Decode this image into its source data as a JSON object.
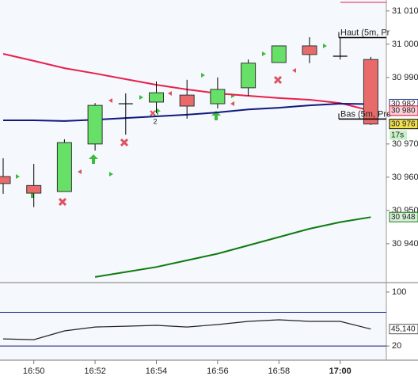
{
  "chart_data": [
    {
      "type": "candlestick",
      "categories": [
        null,
        "16:50",
        null,
        "16:52",
        null,
        "16:54",
        null,
        "16:56",
        null,
        "16:58",
        null,
        "17:00",
        null
      ],
      "open": [
        30960.2,
        30957.5,
        30955.7,
        30970,
        30982.1,
        30982.6,
        30984.7,
        30982.1,
        30986.9,
        30994.5,
        30999.5,
        30996.4,
        30995.4
      ],
      "high": [
        30965.7,
        30964,
        30971.4,
        30982.3,
        30985.2,
        30988.8,
        30989.3,
        30990,
        30995.4,
        30999.5,
        31002.1,
        31002.1,
        30996.2
      ],
      "low": [
        30955,
        30951,
        30955.7,
        30968,
        30972.8,
        30979.3,
        30977.6,
        30980.7,
        30984.5,
        30994.5,
        30994.3,
        30995.4,
        30975.7
      ],
      "close": [
        30958.1,
        30955.2,
        30970.4,
        30981.6,
        30982.1,
        30985.4,
        30981.4,
        30986.4,
        30994.3,
        30999.5,
        30996.9,
        30996.4,
        30976
      ],
      "up_color": "#66e066",
      "down_color": "#e86a6a",
      "lines": [
        {
          "color": "#e8204a",
          "values": [
            30997.1,
            30995,
            30992.8,
            30991.2,
            30989.5,
            30987.8,
            30986.4,
            30985.2,
            30984.5,
            30983.8,
            30983.3,
            30982.3,
            30980
          ]
        },
        {
          "color": "#101880",
          "values": [
            30977.1,
            30977.1,
            30976.9,
            30977.3,
            30977.8,
            30978.3,
            30978.8,
            30979.5,
            30980.4,
            30980.9,
            30981.6,
            30982.1,
            30982
          ]
        },
        {
          "color": "#0f7a0f",
          "values": [
            null,
            null,
            null,
            30930,
            30931.5,
            30933,
            30935,
            30937,
            30939.5,
            30942,
            30944.5,
            30946.5,
            30948
          ]
        }
      ],
      "ylim": [
        30928.3,
        31013.3
      ],
      "yticks": [
        {
          "value": 31010,
          "label": "31 010"
        },
        {
          "value": 31000,
          "label": "31 000"
        },
        {
          "value": 30990,
          "label": "30 990"
        },
        {
          "value": 30970,
          "label": "30 970"
        },
        {
          "value": 30960,
          "label": "30 960"
        },
        {
          "value": 30950,
          "label": "30 950"
        },
        {
          "value": 30940,
          "label": "30 940"
        }
      ],
      "levels": [
        {
          "value": 31002,
          "label": "Haut (5m, Pr"
        },
        {
          "value": 30977.5,
          "label": "Bas (5m, Pre"
        }
      ],
      "price_labels": [
        {
          "value": 30982,
          "label": "30 982",
          "color": "#1a2a8c",
          "background": "#ffffff"
        },
        {
          "value": 30980,
          "label": "30 980",
          "color": "#d0103a",
          "background": "#fbd0d8"
        },
        {
          "value": 30976,
          "label": "30 976",
          "color": "#000000",
          "background": "#f0e050"
        },
        {
          "value": 30948,
          "label": "30 948",
          "color": "#1a7a1a",
          "background": "#d8f0d8"
        }
      ],
      "countdown": "17s",
      "marker_label": "2"
    },
    {
      "type": "line",
      "values": [
        30.6,
        29.4,
        42.4,
        48.2,
        49.4,
        50.6,
        48.2,
        51.8,
        56.5,
        58.8,
        56.5,
        56.5,
        45.14
      ],
      "value_labels": [
        null,
        null,
        null,
        null,
        null,
        null,
        null,
        null,
        null,
        null,
        null,
        null,
        "45,140"
      ],
      "color": "#222222",
      "ylim": [
        -1,
        114
      ],
      "yticks": [
        100,
        20
      ],
      "levels": [
        70,
        20
      ]
    }
  ]
}
